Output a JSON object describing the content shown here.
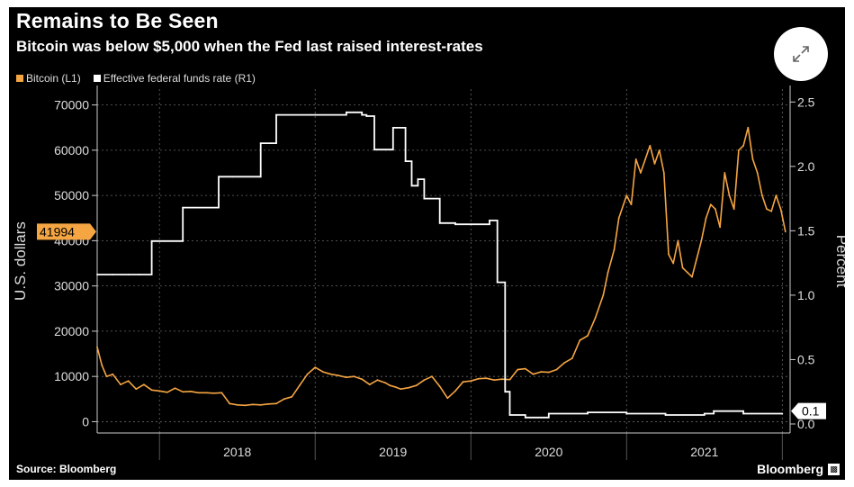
{
  "header": {
    "title": "Remains to Be Seen",
    "subtitle": "Bitcoin was below $5,000 when the Fed last raised interest-rates"
  },
  "legend": {
    "bitcoin": "Bitcoin (L1)",
    "fed": "Effective federal funds rate (R1)"
  },
  "footer": {
    "source": "Source: Bloomberg",
    "brand": "Bloomberg"
  },
  "icons": {
    "expand": "expand-icon",
    "brand": "bloomberg-terminal-icon"
  },
  "colors": {
    "bitcoin": "#f5a542",
    "fed": "#ffffff",
    "background": "#000000",
    "grid": "#666666"
  },
  "chart_data": {
    "type": "line",
    "title": "Remains to Be Seen",
    "subtitle": "Bitcoin was below $5,000 when the Fed last raised interest-rates",
    "ylabel_left": "U.S. dollars",
    "ylabel_right": "Percent",
    "ylim_left": [
      -2500,
      73500
    ],
    "ylim_right": [
      -0.07,
      2.6
    ],
    "yticks_left": [
      0,
      10000,
      20000,
      30000,
      40000,
      50000,
      60000,
      70000
    ],
    "yticks_right": [
      0.0,
      0.5,
      1.0,
      1.5,
      2.0,
      2.5
    ],
    "x_categories": [
      "2018",
      "2019",
      "2020",
      "2021"
    ],
    "xlim": [
      2017.6,
      2022.05
    ],
    "year_boundaries": [
      2018,
      2019,
      2020,
      2021,
      2022
    ],
    "grid": true,
    "legend_position": "top-left",
    "last_value_labels": {
      "bitcoin": "41994",
      "fed": "0.1"
    },
    "series": [
      {
        "name": "Bitcoin (L1)",
        "axis": "left",
        "x": [
          2017.6,
          2017.63,
          2017.66,
          2017.7,
          2017.75,
          2017.8,
          2017.85,
          2017.9,
          2017.95,
          2018.0,
          2018.05,
          2018.1,
          2018.15,
          2018.2,
          2018.25,
          2018.3,
          2018.35,
          2018.4,
          2018.45,
          2018.5,
          2018.55,
          2018.6,
          2018.65,
          2018.7,
          2018.75,
          2018.8,
          2018.85,
          2018.9,
          2018.95,
          2019.0,
          2019.05,
          2019.1,
          2019.15,
          2019.2,
          2019.25,
          2019.3,
          2019.35,
          2019.4,
          2019.45,
          2019.48,
          2019.52,
          2019.55,
          2019.6,
          2019.65,
          2019.7,
          2019.75,
          2019.8,
          2019.85,
          2019.9,
          2019.95,
          2020.0,
          2020.05,
          2020.1,
          2020.15,
          2020.2,
          2020.25,
          2020.3,
          2020.35,
          2020.4,
          2020.45,
          2020.5,
          2020.55,
          2020.6,
          2020.65,
          2020.7,
          2020.75,
          2020.8,
          2020.85,
          2020.88,
          2020.92,
          2020.95,
          2021.0,
          2021.03,
          2021.06,
          2021.09,
          2021.12,
          2021.15,
          2021.18,
          2021.21,
          2021.24,
          2021.27,
          2021.3,
          2021.33,
          2021.36,
          2021.39,
          2021.42,
          2021.45,
          2021.48,
          2021.51,
          2021.54,
          2021.57,
          2021.6,
          2021.63,
          2021.66,
          2021.69,
          2021.72,
          2021.75,
          2021.78,
          2021.81,
          2021.84,
          2021.87,
          2021.9,
          2021.93,
          2021.96,
          2021.99,
          2022.02
        ],
        "y": [
          16500,
          12500,
          10000,
          10500,
          8200,
          9000,
          7200,
          8200,
          7000,
          6800,
          6500,
          7400,
          6600,
          6700,
          6400,
          6400,
          6300,
          6400,
          4000,
          3700,
          3600,
          3800,
          3700,
          3900,
          4000,
          5000,
          5500,
          8000,
          10500,
          12000,
          11000,
          10500,
          10200,
          9800,
          10000,
          9400,
          8200,
          9200,
          8600,
          8000,
          7600,
          7200,
          7500,
          8000,
          9200,
          10000,
          7800,
          5200,
          6800,
          8800,
          9000,
          9500,
          9600,
          9200,
          9400,
          9300,
          11500,
          11700,
          10500,
          11000,
          10900,
          11500,
          13000,
          14000,
          18000,
          19000,
          23000,
          28000,
          33000,
          38000,
          45000,
          50000,
          48000,
          58000,
          55000,
          58000,
          61000,
          57000,
          60000,
          55000,
          37000,
          35000,
          40000,
          34000,
          33000,
          32000,
          36000,
          40000,
          45000,
          48000,
          47000,
          43000,
          55000,
          50000,
          47000,
          60000,
          61000,
          65000,
          58000,
          55000,
          50000,
          47000,
          46500,
          50000,
          47000,
          42000
        ]
      },
      {
        "name": "Effective federal funds rate (R1)",
        "axis": "right",
        "step": true,
        "x": [
          2017.6,
          2017.7,
          2017.8,
          2017.87,
          2017.95,
          2018.03,
          2018.15,
          2018.22,
          2018.38,
          2018.47,
          2018.65,
          2018.72,
          2018.75,
          2018.97,
          2019.0,
          2019.2,
          2019.3,
          2019.33,
          2019.38,
          2019.45,
          2019.5,
          2019.58,
          2019.62,
          2019.66,
          2019.7,
          2019.72,
          2019.8,
          2019.9,
          2020.0,
          2020.12,
          2020.17,
          2020.22,
          2020.25,
          2020.35,
          2020.5,
          2020.75,
          2021.0,
          2021.25,
          2021.5,
          2021.56,
          2021.75,
          2022.0
        ],
        "y": [
          1.16,
          1.16,
          1.16,
          1.16,
          1.42,
          1.42,
          1.68,
          1.68,
          1.92,
          1.92,
          2.18,
          2.18,
          2.4,
          2.4,
          2.4,
          2.42,
          2.4,
          2.39,
          2.13,
          2.13,
          2.3,
          2.04,
          1.85,
          1.9,
          1.75,
          1.75,
          1.56,
          1.55,
          1.55,
          1.58,
          1.1,
          0.25,
          0.07,
          0.05,
          0.08,
          0.09,
          0.08,
          0.07,
          0.08,
          0.1,
          0.08,
          0.08
        ]
      }
    ]
  }
}
